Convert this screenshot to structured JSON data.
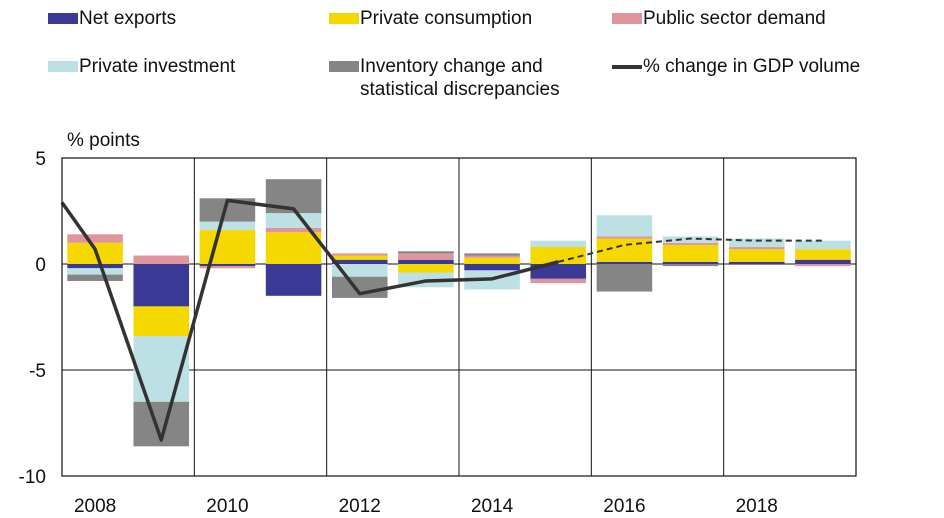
{
  "chart_data": {
    "type": "bar",
    "stacked": true,
    "ylabel": "% points",
    "ylim": [
      -10,
      5
    ],
    "yticks": [
      5,
      0,
      -5,
      -10
    ],
    "x": [
      2008,
      2009,
      2010,
      2011,
      2012,
      2013,
      2014,
      2015,
      2016,
      2017,
      2018,
      2019
    ],
    "xtick_labels": [
      "2008",
      "2010",
      "2012",
      "2014",
      "2016",
      "2018"
    ],
    "grid": true,
    "legend_position": "top",
    "series": [
      {
        "name": "Net exports",
        "color": "#3a3a96",
        "values": [
          -0.2,
          -2.0,
          -0.1,
          -1.5,
          0.2,
          0.2,
          -0.3,
          -0.7,
          0.1,
          0.1,
          0.1,
          0.2
        ]
      },
      {
        "name": "Private consumption",
        "color": "#f5d800",
        "values": [
          1.0,
          -1.4,
          1.6,
          1.5,
          0.2,
          -0.4,
          0.3,
          0.8,
          1.1,
          0.8,
          0.6,
          0.5
        ]
      },
      {
        "name": "Public sector demand",
        "color": "#e0959c",
        "values": [
          0.4,
          0.4,
          -0.1,
          0.2,
          0.1,
          0.3,
          0.1,
          -0.2,
          0.1,
          0.1,
          0.1,
          -0.1
        ]
      },
      {
        "name": "Private investment",
        "color": "#bde0e4",
        "values": [
          -0.3,
          -3.1,
          0.4,
          0.7,
          -0.6,
          -0.7,
          -0.9,
          0.3,
          1.0,
          0.3,
          0.4,
          0.4
        ]
      },
      {
        "name": "Inventory change and\nstatistical discrepancies",
        "color": "#858585",
        "values": [
          -0.3,
          -2.1,
          1.1,
          1.6,
          -1.0,
          0.1,
          0.1,
          0.0,
          -1.3,
          -0.1,
          0.0,
          0.0
        ]
      }
    ],
    "line": {
      "name": "% change in GDP volume",
      "color": "#333333",
      "x": [
        2007.5,
        2008,
        2009,
        2010,
        2011,
        2012,
        2013,
        2014,
        2015,
        2016,
        2017,
        2018,
        2019
      ],
      "values": [
        2.9,
        0.7,
        -8.3,
        3.0,
        2.6,
        -1.4,
        -0.8,
        -0.7,
        0.1,
        0.9,
        1.2,
        1.1,
        1.1
      ],
      "dashed_from": 2015
    }
  }
}
